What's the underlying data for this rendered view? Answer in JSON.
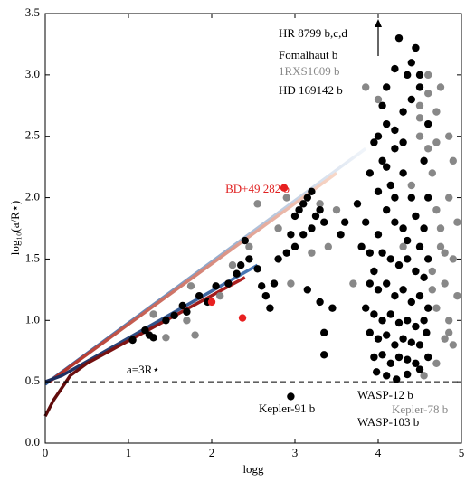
{
  "chart_data": {
    "type": "scatter",
    "xlabel": "logg",
    "ylabel": "log₁₀(a/R⋆)",
    "xlim": [
      0,
      5
    ],
    "ylim": [
      0,
      3.5
    ],
    "xticks": [
      0,
      1,
      2,
      3,
      4,
      5
    ],
    "yticks": [
      {
        "value": 0,
        "label": "0.0"
      },
      0.5,
      {
        "value": 1,
        "label": "1.0"
      },
      1.5,
      {
        "value": 2,
        "label": "2.0"
      },
      2.5,
      {
        "value": 3,
        "label": "3.0"
      },
      3.5
    ],
    "hline": 0.5,
    "annotations": [
      {
        "text": "HR 8799 b,c,d",
        "color": "#000000"
      },
      {
        "text": "Fomalhaut b",
        "color": "#000000"
      },
      {
        "text": "1RXS1609 b",
        "color": "#888888"
      },
      {
        "text": "HD 169142 b",
        "color": "#000000"
      },
      {
        "text": "BD+49 282 b",
        "color": "#e02020"
      },
      {
        "text": "a=3R⋆",
        "color": "#000000"
      },
      {
        "text": "Kepler-91 b",
        "color": "#000000"
      },
      {
        "text": "WASP-12 b",
        "color": "#000000"
      },
      {
        "text": "Kepler-78 b",
        "color": "#888888"
      },
      {
        "text": "WASP-103 b",
        "color": "#000000"
      }
    ],
    "lines": [
      {
        "colors": [
          "#2a5596",
          "#f2f6fb"
        ],
        "x": [
          0,
          3.85
        ],
        "values": [
          0.48,
          2.4
        ]
      },
      {
        "colors": [
          "#b02a20",
          "#f8d8c8"
        ],
        "x": [
          0.05,
          3.5
        ],
        "values": [
          0.5,
          2.2
        ]
      },
      {
        "colors": [
          "#1a2a5a",
          "#4a7ab8"
        ],
        "x": [
          0,
          0.2,
          2.55
        ],
        "values": [
          0.5,
          0.55,
          1.45
        ]
      },
      {
        "colors": [
          "#5a0a0a",
          "#b02020"
        ],
        "x": [
          0,
          0.1,
          0.3,
          0.5,
          2.4
        ],
        "values": [
          0.22,
          0.35,
          0.55,
          0.65,
          1.35
        ]
      }
    ],
    "series": [
      {
        "color": "#888888",
        "x": [
          1.3,
          1.7,
          1.75,
          2.1,
          2.25,
          2.45,
          2.55,
          2.8,
          2.9,
          2.95,
          3.2,
          3.4,
          3.5,
          3.7,
          3.3,
          4.3,
          4.4,
          4.5,
          4.6,
          4.65,
          4.7,
          4.75,
          4.8,
          4.85,
          4.9,
          4.95,
          4.7,
          4.75,
          4.6,
          4.5,
          4.65,
          4.7,
          4.8,
          4.7,
          4.75,
          4.85,
          4.9,
          4.6,
          4.5,
          4.8,
          4.95,
          4.55,
          4.9,
          4.85,
          4.7,
          4.65,
          3.85,
          4.0,
          4.85,
          1.8,
          1.45
        ],
        "values": [
          1.05,
          1.0,
          1.28,
          1.2,
          1.45,
          1.6,
          1.95,
          1.75,
          2.0,
          1.3,
          1.55,
          1.6,
          1.9,
          1.3,
          1.95,
          1.6,
          2.1,
          2.5,
          2.4,
          2.2,
          1.9,
          1.6,
          1.3,
          1.0,
          1.5,
          1.8,
          2.7,
          2.9,
          2.85,
          2.65,
          1.4,
          1.1,
          0.85,
          0.65,
          1.75,
          2.0,
          2.3,
          3.0,
          2.75,
          1.55,
          1.2,
          0.55,
          0.8,
          2.5,
          2.45,
          1.25,
          2.9,
          2.8,
          0.9,
          0.88,
          0.86
        ]
      },
      {
        "color": "#000000",
        "x": [
          1.05,
          1.2,
          1.25,
          1.3,
          1.45,
          1.55,
          1.7,
          1.65,
          1.85,
          1.95,
          2.05,
          2.2,
          2.3,
          2.35,
          2.4,
          2.45,
          2.55,
          2.6,
          2.65,
          2.7,
          2.75,
          2.8,
          2.9,
          2.95,
          3.0,
          3.05,
          3.1,
          3.15,
          3.2,
          3.2,
          3.25,
          3.3,
          3.35,
          3.1,
          3.0,
          3.15,
          3.3,
          3.35,
          3.35,
          3.45,
          3.55,
          3.6,
          3.75,
          3.8,
          3.9,
          3.95,
          2.95,
          4.0,
          4.1,
          4.2,
          4.3,
          4.35,
          4.25,
          4.1,
          4.45,
          4.2,
          4.4,
          4.05,
          4.15,
          4.3,
          4.4,
          4.0,
          4.1,
          4.2,
          4.3,
          4.45,
          4.5,
          4.0,
          4.05,
          4.15,
          4.25,
          4.35,
          4.45,
          3.9,
          4.0,
          4.1,
          4.2,
          4.3,
          4.4,
          4.5,
          3.85,
          3.95,
          4.05,
          4.15,
          4.25,
          4.35,
          4.45,
          4.55,
          3.9,
          4.0,
          4.1,
          4.2,
          4.3,
          4.4,
          4.5,
          3.95,
          4.05,
          4.15,
          4.25,
          4.35,
          4.45,
          3.98,
          4.1,
          4.22,
          4.35,
          4.5,
          4.6,
          4.58,
          4.6,
          4.55,
          4.6,
          4.55,
          4.6,
          4.55,
          4.6,
          4.5,
          4.4,
          4.5,
          4.2,
          4.3,
          4.1,
          4.2,
          4.35,
          3.9,
          3.85,
          3.95,
          4.05
        ],
        "values": [
          0.84,
          0.92,
          0.88,
          0.86,
          1.0,
          1.04,
          1.07,
          1.12,
          1.2,
          1.15,
          1.28,
          1.3,
          1.38,
          1.45,
          1.65,
          1.5,
          1.42,
          1.28,
          1.2,
          1.1,
          1.3,
          1.5,
          1.55,
          1.7,
          1.85,
          1.9,
          1.95,
          2.0,
          2.05,
          1.75,
          1.85,
          1.9,
          1.8,
          1.7,
          1.6,
          1.25,
          1.15,
          0.9,
          0.72,
          1.1,
          1.7,
          1.8,
          1.95,
          1.6,
          2.2,
          1.4,
          0.38,
          2.5,
          2.6,
          2.4,
          2.7,
          3.0,
          3.3,
          2.9,
          3.22,
          3.05,
          2.8,
          2.3,
          2.1,
          2.2,
          2.0,
          2.05,
          1.9,
          1.8,
          1.75,
          1.85,
          1.6,
          1.7,
          1.55,
          1.5,
          1.45,
          1.5,
          1.4,
          1.3,
          1.25,
          1.3,
          1.2,
          1.25,
          1.15,
          1.2,
          1.1,
          1.05,
          1.0,
          1.05,
          0.98,
          1.0,
          0.95,
          1.0,
          0.9,
          0.85,
          0.88,
          0.8,
          0.85,
          0.82,
          0.8,
          0.7,
          0.72,
          0.65,
          0.7,
          0.68,
          0.65,
          0.58,
          0.55,
          0.52,
          0.56,
          0.6,
          0.7,
          0.9,
          1.1,
          1.35,
          1.5,
          1.75,
          2.0,
          2.3,
          2.6,
          2.9,
          3.1,
          3.0,
          2.55,
          2.45,
          2.25,
          2.0,
          1.65,
          1.55,
          1.8,
          2.45,
          2.75
        ]
      },
      {
        "color": "#e82020",
        "x": [
          2.87,
          2.0,
          2.37
        ],
        "values": [
          2.08,
          1.15,
          1.02
        ]
      }
    ]
  }
}
